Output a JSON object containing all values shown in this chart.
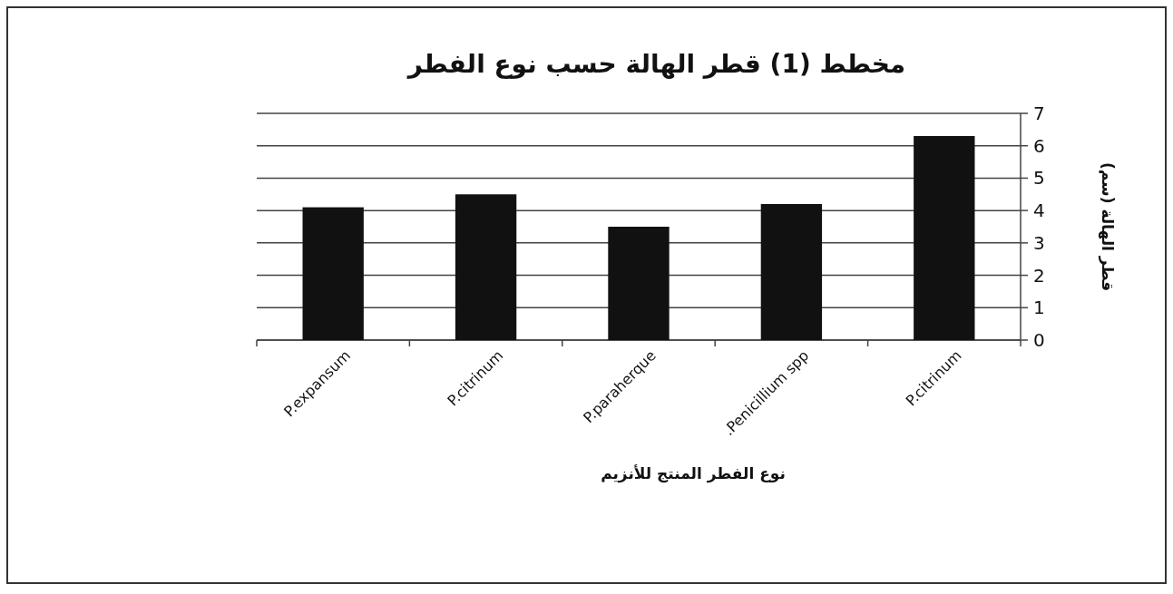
{
  "chart_data": {
    "type": "bar",
    "title": "مخطط (1) قطر الهالة حسب نوع الفطر",
    "xlabel": "نوع الفطر المنتج للأنزيم",
    "ylabel": "قطر الهالة (سم)",
    "categories": [
      "P.expansum",
      "P.citrinum",
      "P.paraherque",
      ".Penicillium spp",
      "P.citrinum"
    ],
    "values": [
      4.1,
      4.5,
      3.5,
      4.2,
      6.3
    ],
    "color": "#111111",
    "ylim": [
      0,
      7
    ],
    "yticks": [
      0,
      1,
      2,
      3,
      4,
      5,
      6,
      7
    ],
    "grid": "y"
  }
}
